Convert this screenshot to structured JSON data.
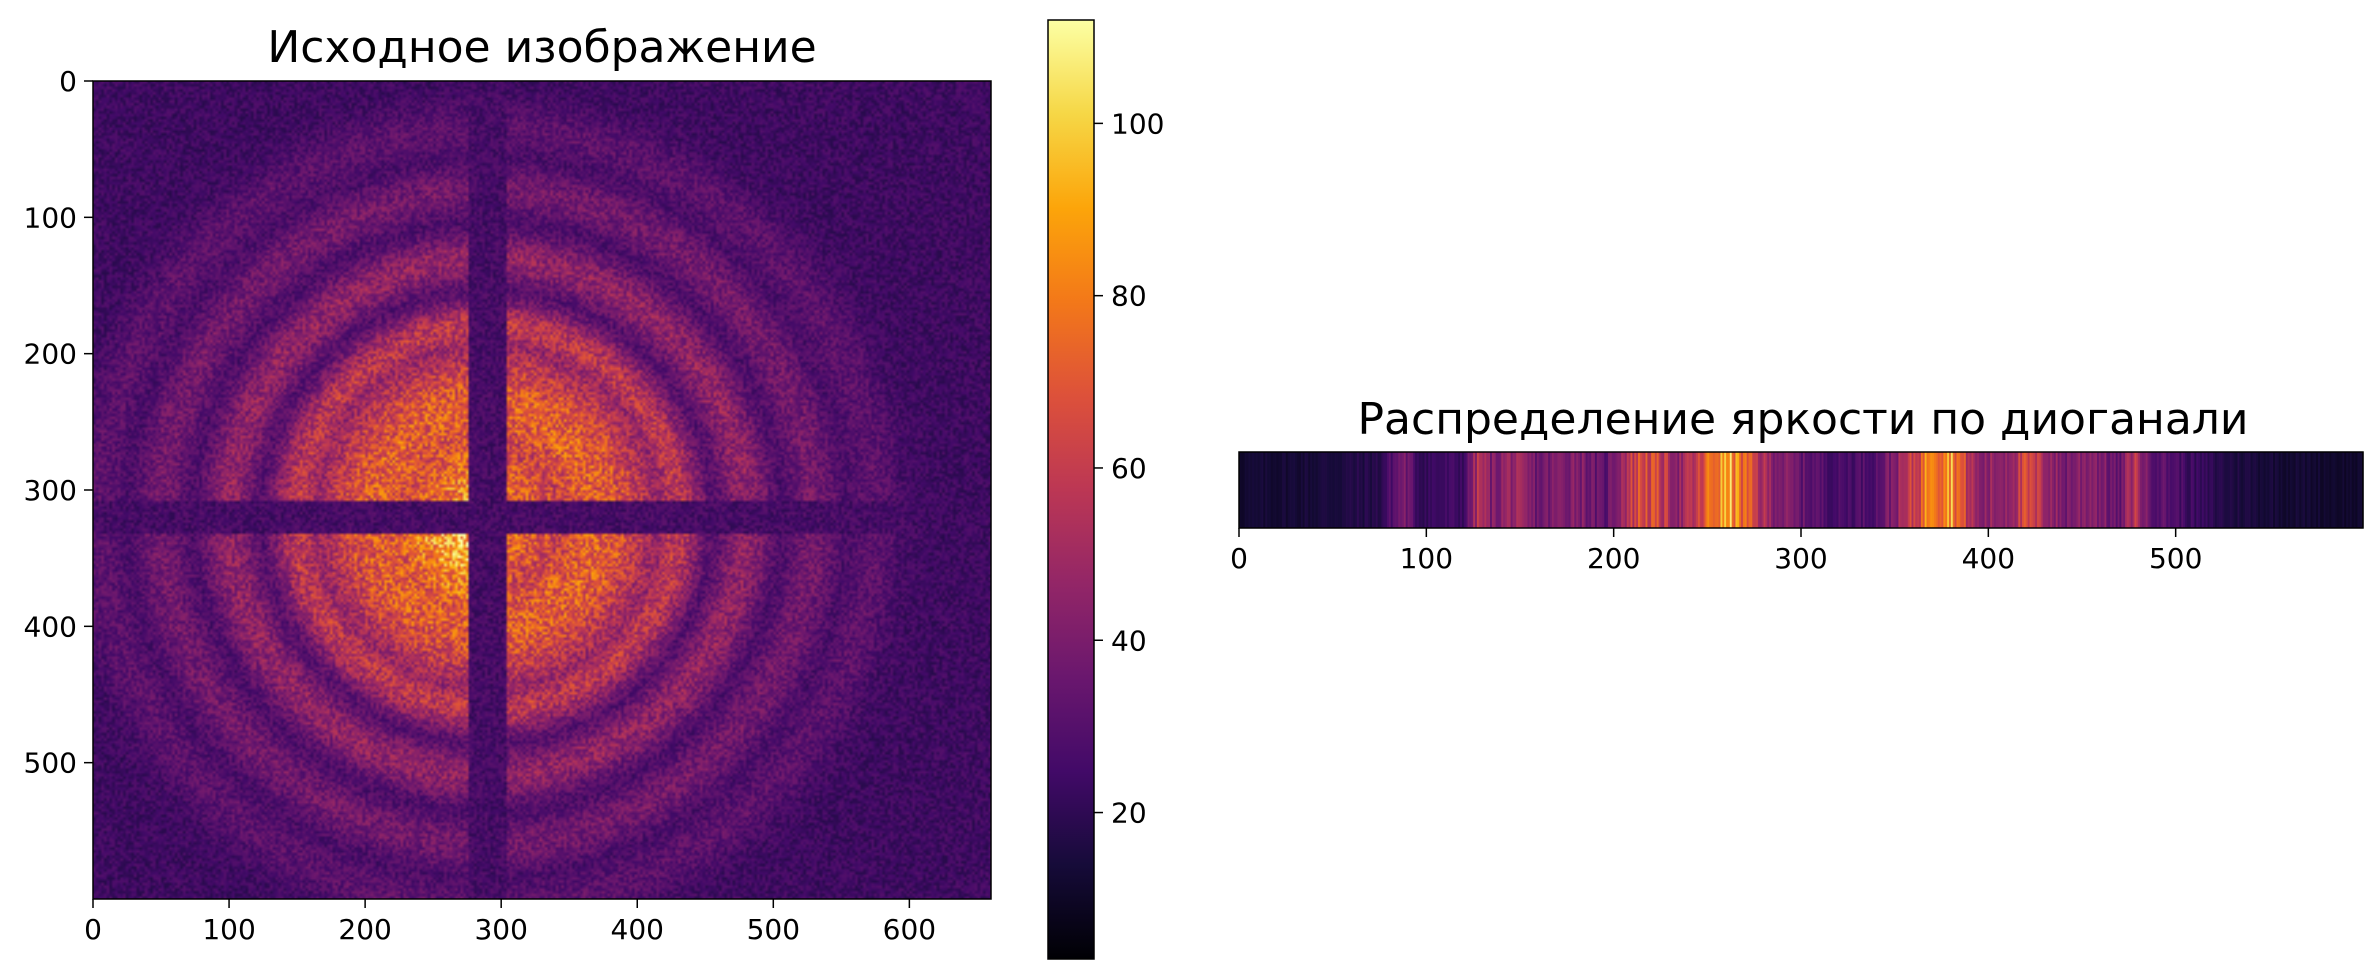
{
  "chart_data": [
    {
      "type": "heatmap",
      "title": "Исходное изображение",
      "xlabel": "",
      "ylabel": "",
      "x_ticks": [
        0,
        100,
        200,
        300,
        400,
        500,
        600
      ],
      "y_ticks": [
        0,
        100,
        200,
        300,
        400,
        500
      ],
      "xlim": [
        0,
        660
      ],
      "ylim": [
        600,
        0
      ],
      "colormap": "inferno",
      "colorbar": {
        "range": [
          3,
          112
        ],
        "ticks": [
          20,
          40,
          60,
          80,
          100
        ]
      },
      "pattern": {
        "description_free_parameters": true,
        "center": [
          290,
          320
        ],
        "rings": [
          {
            "radius": 80,
            "peak": 72
          },
          {
            "radius": 140,
            "peak": 58
          },
          {
            "radius": 190,
            "peak": 46
          },
          {
            "radius": 240,
            "peak": 38
          },
          {
            "radius": 285,
            "peak": 32
          }
        ],
        "background": 24,
        "cross_gap_level": 20
      }
    },
    {
      "type": "heatmap",
      "title": "Распределение яркости по диоганали",
      "xlabel": "",
      "ylabel": "",
      "x_ticks": [
        0,
        100,
        200,
        300,
        400,
        500
      ],
      "xlim": [
        0,
        600
      ],
      "colormap": "inferno",
      "profile": [
        {
          "x": 0,
          "v": 12
        },
        {
          "x": 40,
          "v": 14
        },
        {
          "x": 75,
          "v": 18
        },
        {
          "x": 88,
          "v": 40
        },
        {
          "x": 96,
          "v": 22
        },
        {
          "x": 120,
          "v": 24
        },
        {
          "x": 128,
          "v": 55
        },
        {
          "x": 135,
          "v": 40
        },
        {
          "x": 145,
          "v": 48
        },
        {
          "x": 160,
          "v": 36
        },
        {
          "x": 180,
          "v": 44
        },
        {
          "x": 195,
          "v": 30
        },
        {
          "x": 205,
          "v": 52
        },
        {
          "x": 215,
          "v": 68
        },
        {
          "x": 225,
          "v": 60
        },
        {
          "x": 235,
          "v": 45
        },
        {
          "x": 245,
          "v": 58
        },
        {
          "x": 250,
          "v": 72
        },
        {
          "x": 255,
          "v": 82
        },
        {
          "x": 262,
          "v": 90
        },
        {
          "x": 268,
          "v": 76
        },
        {
          "x": 275,
          "v": 60
        },
        {
          "x": 282,
          "v": 48
        },
        {
          "x": 300,
          "v": 34
        },
        {
          "x": 320,
          "v": 26
        },
        {
          "x": 340,
          "v": 30
        },
        {
          "x": 355,
          "v": 50
        },
        {
          "x": 365,
          "v": 72
        },
        {
          "x": 370,
          "v": 98
        },
        {
          "x": 374,
          "v": 82
        },
        {
          "x": 380,
          "v": 92
        },
        {
          "x": 386,
          "v": 66
        },
        {
          "x": 395,
          "v": 42
        },
        {
          "x": 410,
          "v": 48
        },
        {
          "x": 420,
          "v": 62
        },
        {
          "x": 430,
          "v": 52
        },
        {
          "x": 440,
          "v": 38
        },
        {
          "x": 455,
          "v": 46
        },
        {
          "x": 470,
          "v": 32
        },
        {
          "x": 478,
          "v": 58
        },
        {
          "x": 485,
          "v": 36
        },
        {
          "x": 500,
          "v": 28
        },
        {
          "x": 510,
          "v": 22
        },
        {
          "x": 530,
          "v": 16
        },
        {
          "x": 560,
          "v": 13
        },
        {
          "x": 600,
          "v": 11
        }
      ]
    }
  ]
}
